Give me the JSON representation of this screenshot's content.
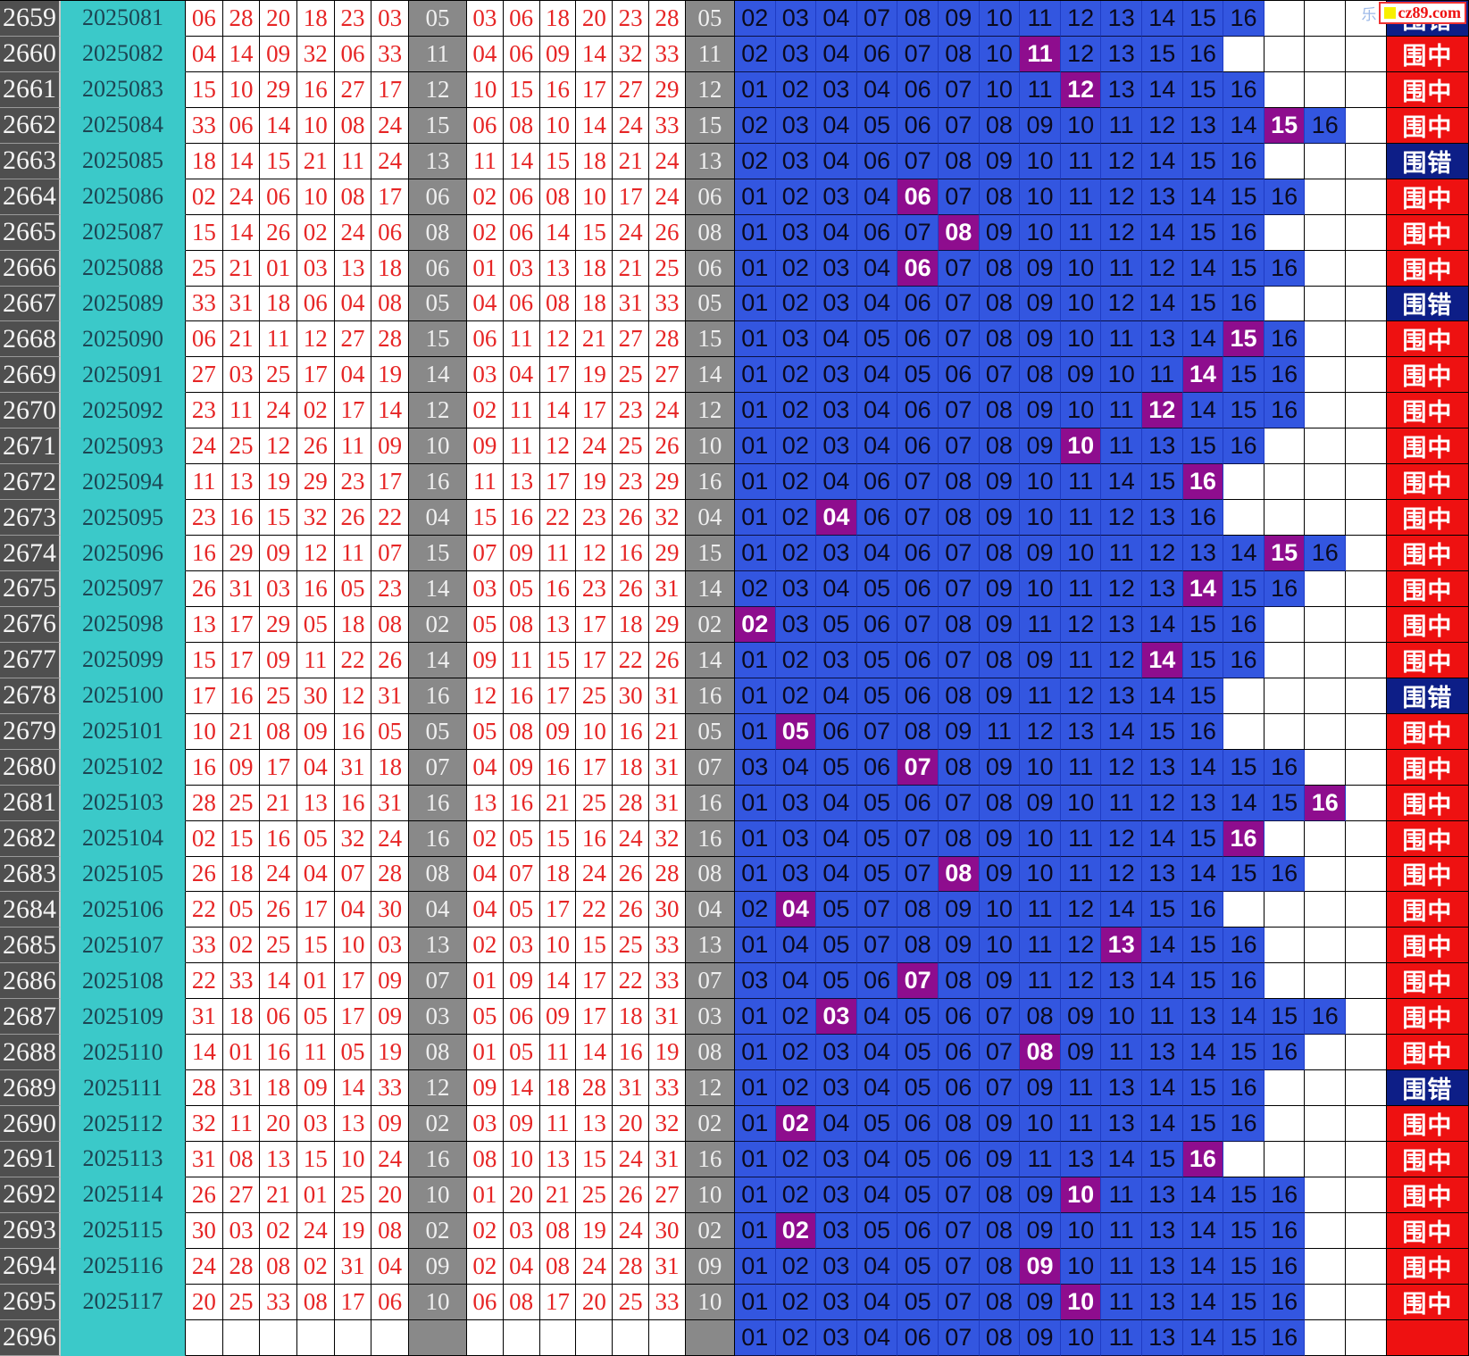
{
  "watermark": {
    "cjk": "乐",
    "domain": "cz89.com",
    "logo_icon": "yellow-square-icon"
  },
  "legend": {
    "hit_label": "围中",
    "miss_label": "围错"
  },
  "colors": {
    "index_bg": "#4f4f4f",
    "period_bg": "#3bc9c9",
    "red_number": "#e62525",
    "gray_ball_bg": "#898989",
    "candidate_bg": "#3356e0",
    "candidate_hit_bg": "#8e0d8e",
    "result_hit_bg": "#ee1111",
    "result_miss_bg": "#0d1e87",
    "watermark_red": "#ee1111",
    "watermark_yellow": "#f8ef00"
  },
  "chart_data": {
    "type": "table",
    "note": "Double-color-ball blue-number containment trend: idx, period, 6 red balls (drawn order), blue ball, reds repeated sorted, blue repeated, candidate blue set 01-16, result hit(围中)/miss(围错)",
    "rows": [
      {
        "idx": "2659",
        "period": "2025081",
        "reds": [
          "06",
          "28",
          "20",
          "18",
          "23",
          "03"
        ],
        "blue": "05",
        "candidates": [
          "02",
          "03",
          "04",
          "07",
          "08",
          "09",
          "10",
          "11",
          "12",
          "13",
          "14",
          "15",
          "16"
        ],
        "result": "miss"
      },
      {
        "idx": "2660",
        "period": "2025082",
        "reds": [
          "04",
          "14",
          "09",
          "32",
          "06",
          "33"
        ],
        "blue": "11",
        "candidates": [
          "02",
          "03",
          "04",
          "06",
          "07",
          "08",
          "10",
          "11",
          "12",
          "13",
          "15",
          "16"
        ],
        "result": "hit"
      },
      {
        "idx": "2661",
        "period": "2025083",
        "reds": [
          "15",
          "10",
          "29",
          "16",
          "27",
          "17"
        ],
        "blue": "12",
        "candidates": [
          "01",
          "02",
          "03",
          "04",
          "06",
          "07",
          "10",
          "11",
          "12",
          "13",
          "14",
          "15",
          "16"
        ],
        "result": "hit"
      },
      {
        "idx": "2662",
        "period": "2025084",
        "reds": [
          "33",
          "06",
          "14",
          "10",
          "08",
          "24"
        ],
        "blue": "15",
        "candidates": [
          "02",
          "03",
          "04",
          "05",
          "06",
          "07",
          "08",
          "09",
          "10",
          "11",
          "12",
          "13",
          "14",
          "15",
          "16"
        ],
        "result": "hit"
      },
      {
        "idx": "2663",
        "period": "2025085",
        "reds": [
          "18",
          "14",
          "15",
          "21",
          "11",
          "24"
        ],
        "blue": "13",
        "candidates": [
          "02",
          "03",
          "04",
          "06",
          "07",
          "08",
          "09",
          "10",
          "11",
          "12",
          "14",
          "15",
          "16"
        ],
        "result": "miss"
      },
      {
        "idx": "2664",
        "period": "2025086",
        "reds": [
          "02",
          "24",
          "06",
          "10",
          "08",
          "17"
        ],
        "blue": "06",
        "candidates": [
          "01",
          "02",
          "03",
          "04",
          "06",
          "07",
          "08",
          "10",
          "11",
          "12",
          "13",
          "14",
          "15",
          "16"
        ],
        "result": "hit"
      },
      {
        "idx": "2665",
        "period": "2025087",
        "reds": [
          "15",
          "14",
          "26",
          "02",
          "24",
          "06"
        ],
        "blue": "08",
        "candidates": [
          "01",
          "03",
          "04",
          "06",
          "07",
          "08",
          "09",
          "10",
          "11",
          "12",
          "14",
          "15",
          "16"
        ],
        "result": "hit"
      },
      {
        "idx": "2666",
        "period": "2025088",
        "reds": [
          "25",
          "21",
          "01",
          "03",
          "13",
          "18"
        ],
        "blue": "06",
        "candidates": [
          "01",
          "02",
          "03",
          "04",
          "06",
          "07",
          "08",
          "09",
          "10",
          "11",
          "12",
          "14",
          "15",
          "16"
        ],
        "result": "hit"
      },
      {
        "idx": "2667",
        "period": "2025089",
        "reds": [
          "33",
          "31",
          "18",
          "06",
          "04",
          "08"
        ],
        "blue": "05",
        "candidates": [
          "01",
          "02",
          "03",
          "04",
          "06",
          "07",
          "08",
          "09",
          "10",
          "12",
          "14",
          "15",
          "16"
        ],
        "result": "miss"
      },
      {
        "idx": "2668",
        "period": "2025090",
        "reds": [
          "06",
          "21",
          "11",
          "12",
          "27",
          "28"
        ],
        "blue": "15",
        "candidates": [
          "01",
          "03",
          "04",
          "05",
          "06",
          "07",
          "08",
          "09",
          "10",
          "11",
          "13",
          "14",
          "15",
          "16"
        ],
        "result": "hit"
      },
      {
        "idx": "2669",
        "period": "2025091",
        "reds": [
          "27",
          "03",
          "25",
          "17",
          "04",
          "19"
        ],
        "blue": "14",
        "candidates": [
          "01",
          "02",
          "03",
          "04",
          "05",
          "06",
          "07",
          "08",
          "09",
          "10",
          "11",
          "14",
          "15",
          "16"
        ],
        "result": "hit"
      },
      {
        "idx": "2670",
        "period": "2025092",
        "reds": [
          "23",
          "11",
          "24",
          "02",
          "17",
          "14"
        ],
        "blue": "12",
        "candidates": [
          "01",
          "02",
          "03",
          "04",
          "06",
          "07",
          "08",
          "09",
          "10",
          "11",
          "12",
          "14",
          "15",
          "16"
        ],
        "result": "hit"
      },
      {
        "idx": "2671",
        "period": "2025093",
        "reds": [
          "24",
          "25",
          "12",
          "26",
          "11",
          "09"
        ],
        "blue": "10",
        "candidates": [
          "01",
          "02",
          "03",
          "04",
          "06",
          "07",
          "08",
          "09",
          "10",
          "11",
          "13",
          "15",
          "16"
        ],
        "result": "hit"
      },
      {
        "idx": "2672",
        "period": "2025094",
        "reds": [
          "11",
          "13",
          "19",
          "29",
          "23",
          "17"
        ],
        "blue": "16",
        "candidates": [
          "01",
          "02",
          "04",
          "06",
          "07",
          "08",
          "09",
          "10",
          "11",
          "14",
          "15",
          "16"
        ],
        "result": "hit"
      },
      {
        "idx": "2673",
        "period": "2025095",
        "reds": [
          "23",
          "16",
          "15",
          "32",
          "26",
          "22"
        ],
        "blue": "04",
        "candidates": [
          "01",
          "02",
          "04",
          "06",
          "07",
          "08",
          "09",
          "10",
          "11",
          "12",
          "13",
          "16"
        ],
        "result": "hit"
      },
      {
        "idx": "2674",
        "period": "2025096",
        "reds": [
          "16",
          "29",
          "09",
          "12",
          "11",
          "07"
        ],
        "blue": "15",
        "candidates": [
          "01",
          "02",
          "03",
          "04",
          "06",
          "07",
          "08",
          "09",
          "10",
          "11",
          "12",
          "13",
          "14",
          "15",
          "16"
        ],
        "result": "hit"
      },
      {
        "idx": "2675",
        "period": "2025097",
        "reds": [
          "26",
          "31",
          "03",
          "16",
          "05",
          "23"
        ],
        "blue": "14",
        "candidates": [
          "02",
          "03",
          "04",
          "05",
          "06",
          "07",
          "09",
          "10",
          "11",
          "12",
          "13",
          "14",
          "15",
          "16"
        ],
        "result": "hit"
      },
      {
        "idx": "2676",
        "period": "2025098",
        "reds": [
          "13",
          "17",
          "29",
          "05",
          "18",
          "08"
        ],
        "blue": "02",
        "candidates": [
          "02",
          "03",
          "05",
          "06",
          "07",
          "08",
          "09",
          "11",
          "12",
          "13",
          "14",
          "15",
          "16"
        ],
        "result": "hit"
      },
      {
        "idx": "2677",
        "period": "2025099",
        "reds": [
          "15",
          "17",
          "09",
          "11",
          "22",
          "26"
        ],
        "blue": "14",
        "candidates": [
          "01",
          "02",
          "03",
          "05",
          "06",
          "07",
          "08",
          "09",
          "11",
          "12",
          "14",
          "15",
          "16"
        ],
        "result": "hit"
      },
      {
        "idx": "2678",
        "period": "2025100",
        "reds": [
          "17",
          "16",
          "25",
          "30",
          "12",
          "31"
        ],
        "blue": "16",
        "candidates": [
          "01",
          "02",
          "04",
          "05",
          "06",
          "08",
          "09",
          "11",
          "12",
          "13",
          "14",
          "15"
        ],
        "result": "miss"
      },
      {
        "idx": "2679",
        "period": "2025101",
        "reds": [
          "10",
          "21",
          "08",
          "09",
          "16",
          "05"
        ],
        "blue": "05",
        "candidates": [
          "01",
          "05",
          "06",
          "07",
          "08",
          "09",
          "11",
          "12",
          "13",
          "14",
          "15",
          "16"
        ],
        "result": "hit"
      },
      {
        "idx": "2680",
        "period": "2025102",
        "reds": [
          "16",
          "09",
          "17",
          "04",
          "31",
          "18"
        ],
        "blue": "07",
        "candidates": [
          "03",
          "04",
          "05",
          "06",
          "07",
          "08",
          "09",
          "10",
          "11",
          "12",
          "13",
          "14",
          "15",
          "16"
        ],
        "result": "hit"
      },
      {
        "idx": "2681",
        "period": "2025103",
        "reds": [
          "28",
          "25",
          "21",
          "13",
          "16",
          "31"
        ],
        "blue": "16",
        "candidates": [
          "01",
          "03",
          "04",
          "05",
          "06",
          "07",
          "08",
          "09",
          "10",
          "11",
          "12",
          "13",
          "14",
          "15",
          "16"
        ],
        "result": "hit"
      },
      {
        "idx": "2682",
        "period": "2025104",
        "reds": [
          "02",
          "15",
          "16",
          "05",
          "32",
          "24"
        ],
        "blue": "16",
        "candidates": [
          "01",
          "03",
          "04",
          "05",
          "07",
          "08",
          "09",
          "10",
          "11",
          "12",
          "14",
          "15",
          "16"
        ],
        "result": "hit"
      },
      {
        "idx": "2683",
        "period": "2025105",
        "reds": [
          "26",
          "18",
          "24",
          "04",
          "07",
          "28"
        ],
        "blue": "08",
        "candidates": [
          "01",
          "03",
          "04",
          "05",
          "07",
          "08",
          "09",
          "10",
          "11",
          "12",
          "13",
          "14",
          "15",
          "16"
        ],
        "result": "hit"
      },
      {
        "idx": "2684",
        "period": "2025106",
        "reds": [
          "22",
          "05",
          "26",
          "17",
          "04",
          "30"
        ],
        "blue": "04",
        "candidates": [
          "02",
          "04",
          "05",
          "07",
          "08",
          "09",
          "10",
          "11",
          "12",
          "14",
          "15",
          "16"
        ],
        "result": "hit"
      },
      {
        "idx": "2685",
        "period": "2025107",
        "reds": [
          "33",
          "02",
          "25",
          "15",
          "10",
          "03"
        ],
        "blue": "13",
        "candidates": [
          "01",
          "04",
          "05",
          "07",
          "08",
          "09",
          "10",
          "11",
          "12",
          "13",
          "14",
          "15",
          "16"
        ],
        "result": "hit"
      },
      {
        "idx": "2686",
        "period": "2025108",
        "reds": [
          "22",
          "33",
          "14",
          "01",
          "17",
          "09"
        ],
        "blue": "07",
        "candidates": [
          "03",
          "04",
          "05",
          "06",
          "07",
          "08",
          "09",
          "11",
          "12",
          "13",
          "14",
          "15",
          "16"
        ],
        "result": "hit"
      },
      {
        "idx": "2687",
        "period": "2025109",
        "reds": [
          "31",
          "18",
          "06",
          "05",
          "17",
          "09"
        ],
        "blue": "03",
        "candidates": [
          "01",
          "02",
          "03",
          "04",
          "05",
          "06",
          "07",
          "08",
          "09",
          "10",
          "11",
          "13",
          "14",
          "15",
          "16"
        ],
        "result": "hit"
      },
      {
        "idx": "2688",
        "period": "2025110",
        "reds": [
          "14",
          "01",
          "16",
          "11",
          "05",
          "19"
        ],
        "blue": "08",
        "candidates": [
          "01",
          "02",
          "03",
          "04",
          "05",
          "06",
          "07",
          "08",
          "09",
          "11",
          "13",
          "14",
          "15",
          "16"
        ],
        "result": "hit"
      },
      {
        "idx": "2689",
        "period": "2025111",
        "reds": [
          "28",
          "31",
          "18",
          "09",
          "14",
          "33"
        ],
        "blue": "12",
        "candidates": [
          "01",
          "02",
          "03",
          "04",
          "05",
          "06",
          "07",
          "09",
          "11",
          "13",
          "14",
          "15",
          "16"
        ],
        "result": "miss"
      },
      {
        "idx": "2690",
        "period": "2025112",
        "reds": [
          "32",
          "11",
          "20",
          "03",
          "13",
          "09"
        ],
        "blue": "02",
        "candidates": [
          "01",
          "02",
          "04",
          "05",
          "06",
          "08",
          "09",
          "10",
          "11",
          "13",
          "14",
          "15",
          "16"
        ],
        "result": "hit"
      },
      {
        "idx": "2691",
        "period": "2025113",
        "reds": [
          "31",
          "08",
          "13",
          "15",
          "10",
          "24"
        ],
        "blue": "16",
        "candidates": [
          "01",
          "02",
          "03",
          "04",
          "05",
          "06",
          "09",
          "11",
          "13",
          "14",
          "15",
          "16"
        ],
        "result": "hit"
      },
      {
        "idx": "2692",
        "period": "2025114",
        "reds": [
          "26",
          "27",
          "21",
          "01",
          "25",
          "20"
        ],
        "blue": "10",
        "candidates": [
          "01",
          "02",
          "03",
          "04",
          "05",
          "07",
          "08",
          "09",
          "10",
          "11",
          "13",
          "14",
          "15",
          "16"
        ],
        "result": "hit"
      },
      {
        "idx": "2693",
        "period": "2025115",
        "reds": [
          "30",
          "03",
          "02",
          "24",
          "19",
          "08"
        ],
        "blue": "02",
        "candidates": [
          "01",
          "02",
          "03",
          "05",
          "06",
          "07",
          "08",
          "09",
          "10",
          "11",
          "13",
          "14",
          "15",
          "16"
        ],
        "result": "hit"
      },
      {
        "idx": "2694",
        "period": "2025116",
        "reds": [
          "24",
          "28",
          "08",
          "02",
          "31",
          "04"
        ],
        "blue": "09",
        "candidates": [
          "01",
          "02",
          "03",
          "04",
          "05",
          "07",
          "08",
          "09",
          "10",
          "11",
          "13",
          "14",
          "15",
          "16"
        ],
        "result": "hit"
      },
      {
        "idx": "2695",
        "period": "2025117",
        "reds": [
          "20",
          "25",
          "33",
          "08",
          "17",
          "06"
        ],
        "blue": "10",
        "candidates": [
          "01",
          "02",
          "03",
          "04",
          "05",
          "07",
          "08",
          "09",
          "10",
          "11",
          "13",
          "14",
          "15",
          "16"
        ],
        "result": "hit"
      },
      {
        "idx": "2696",
        "period": "",
        "reds": [],
        "blue": "",
        "candidates": [
          "01",
          "02",
          "03",
          "04",
          "06",
          "07",
          "08",
          "09",
          "10",
          "11",
          "13",
          "14",
          "15",
          "16"
        ],
        "result": "pending"
      }
    ]
  }
}
